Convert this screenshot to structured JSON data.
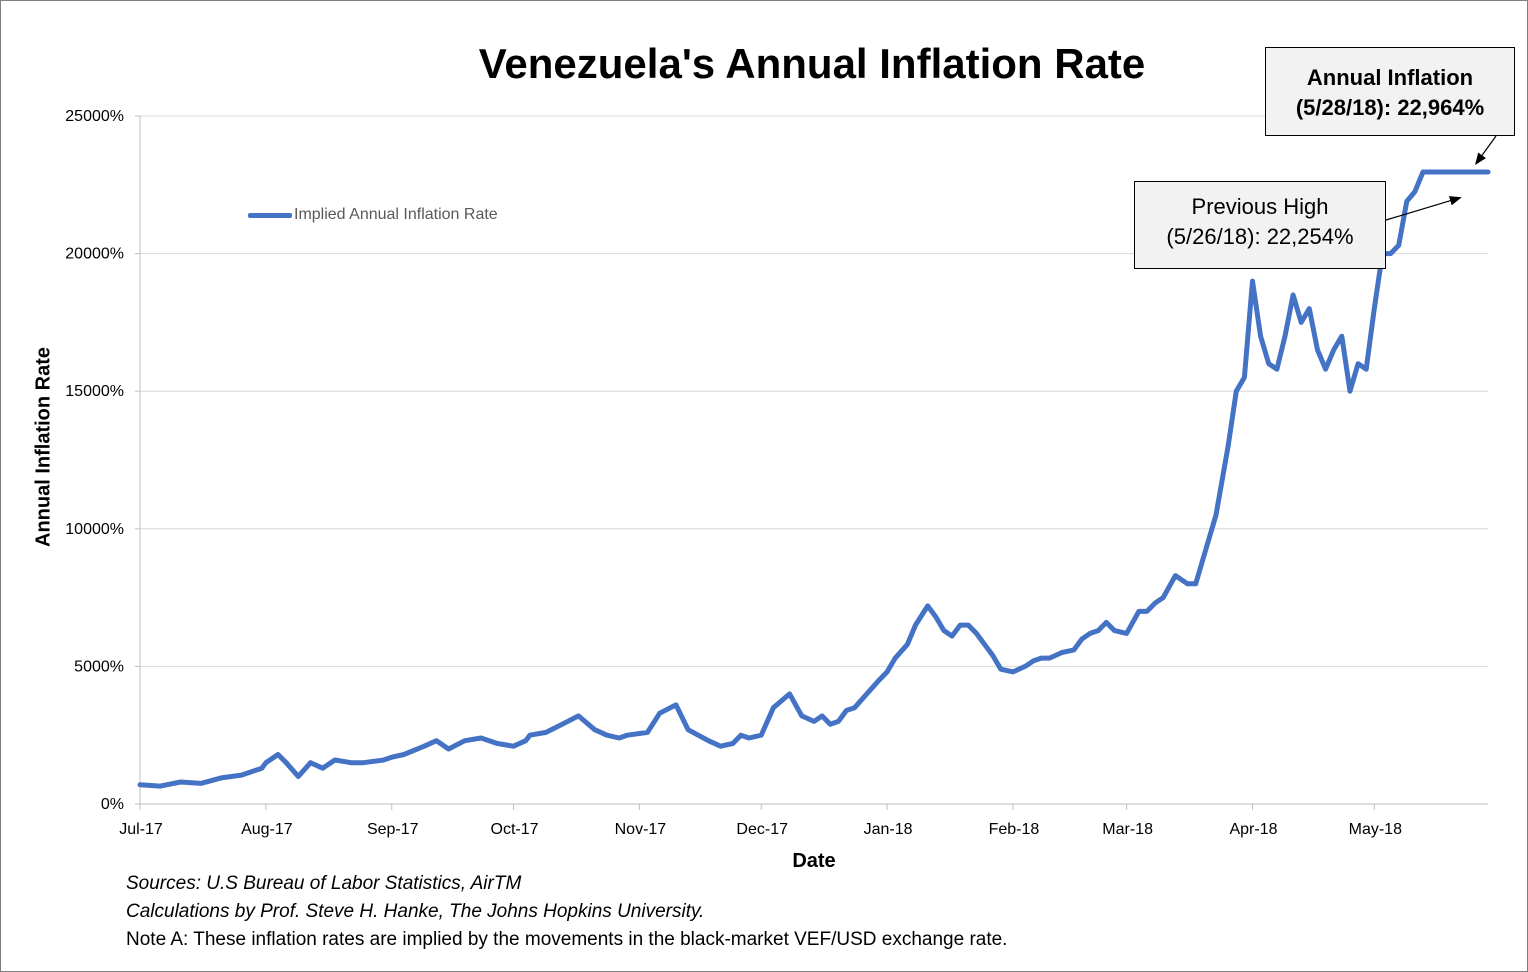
{
  "chart_data": {
    "type": "line",
    "title": "Venezuela's Annual Inflation Rate",
    "xlabel": "Date",
    "ylabel": "Annual Inflation Rate",
    "ylim": [
      0,
      25000
    ],
    "yticks": [
      0,
      5000,
      10000,
      15000,
      20000,
      25000
    ],
    "ytick_labels": [
      "0%",
      "5000%",
      "10000%",
      "15000%",
      "20000%",
      "25000%"
    ],
    "xlim": [
      0,
      332
    ],
    "xticks": [
      0,
      31,
      62,
      92,
      123,
      153,
      184,
      215,
      243,
      274,
      304
    ],
    "xtick_labels": [
      "Jul-17",
      "Aug-17",
      "Sep-17",
      "Oct-17",
      "Nov-17",
      "Dec-17",
      "Jan-18",
      "Feb-18",
      "Mar-18",
      "Apr-18",
      "May-18"
    ],
    "grid": true,
    "legend": "upper-left",
    "series": [
      {
        "name": "Implied Annual Inflation Rate",
        "color": "#4472c4",
        "x": [
          0,
          5,
          10,
          15,
          20,
          25,
          30,
          31,
          34,
          36,
          39,
          42,
          45,
          48,
          52,
          55,
          60,
          62,
          65,
          70,
          73,
          76,
          80,
          84,
          88,
          92,
          95,
          96,
          100,
          104,
          108,
          112,
          115,
          118,
          120,
          125,
          128,
          132,
          135,
          140,
          143,
          146,
          148,
          150,
          153,
          156,
          160,
          163,
          166,
          168,
          170,
          172,
          174,
          176,
          179,
          182,
          184,
          186,
          189,
          191,
          194,
          196,
          198,
          200,
          202,
          204,
          206,
          210,
          212,
          215,
          218,
          220,
          222,
          224,
          227,
          230,
          232,
          234,
          236,
          238,
          240,
          243,
          246,
          248,
          250,
          252,
          255,
          258,
          260,
          262,
          265,
          268,
          270,
          272,
          274,
          276,
          278,
          280,
          282,
          284,
          286,
          288,
          290,
          292,
          294,
          296,
          298,
          300,
          302,
          304,
          306,
          308,
          310,
          312,
          314,
          316,
          318,
          320,
          322,
          324,
          326,
          328,
          330,
          332
        ],
        "values": [
          700,
          650,
          800,
          750,
          950,
          1050,
          1300,
          1500,
          1800,
          1500,
          1000,
          1500,
          1300,
          1600,
          1500,
          1500,
          1600,
          1700,
          1800,
          2100,
          2300,
          2000,
          2300,
          2400,
          2200,
          2100,
          2300,
          2500,
          2600,
          2900,
          3200,
          2700,
          2500,
          2400,
          2500,
          2600,
          3300,
          3600,
          2700,
          2300,
          2100,
          2200,
          2500,
          2400,
          2500,
          3500,
          4000,
          3200,
          3000,
          3200,
          2900,
          3000,
          3400,
          3500,
          4000,
          4500,
          4800,
          5300,
          5800,
          6500,
          7200,
          6800,
          6300,
          6100,
          6500,
          6500,
          6200,
          5400,
          4900,
          4800,
          5000,
          5200,
          5300,
          5300,
          5500,
          5600,
          6000,
          6200,
          6300,
          6600,
          6300,
          6200,
          7000,
          7000,
          7300,
          7500,
          8300,
          8000,
          8000,
          9000,
          10500,
          13000,
          15000,
          15500,
          19000,
          17000,
          16000,
          15800,
          17000,
          18500,
          17500,
          18000,
          16500,
          15800,
          16500,
          17000,
          15000,
          16000,
          15800,
          18000,
          20000,
          20000,
          20300,
          21900,
          22254,
          22964,
          22964,
          22964,
          22964,
          22964,
          22964,
          22964,
          22964,
          22964
        ]
      }
    ],
    "annotations": [
      {
        "label": "Previous High",
        "value_text": "(5/26/18): 22,254%",
        "x": 326,
        "y": 22254
      },
      {
        "label": "Annual Inflation",
        "value_text": "(5/28/18): 22,964%",
        "x": 328,
        "y": 22964
      }
    ],
    "sources": [
      "Sources: U.S Bureau of Labor Statistics, AirTM",
      "Calculations by Prof. Steve H. Hanke, The Johns Hopkins University.",
      "Note A: These inflation rates are implied by the movements in the black-market VEF/USD exchange rate."
    ]
  }
}
